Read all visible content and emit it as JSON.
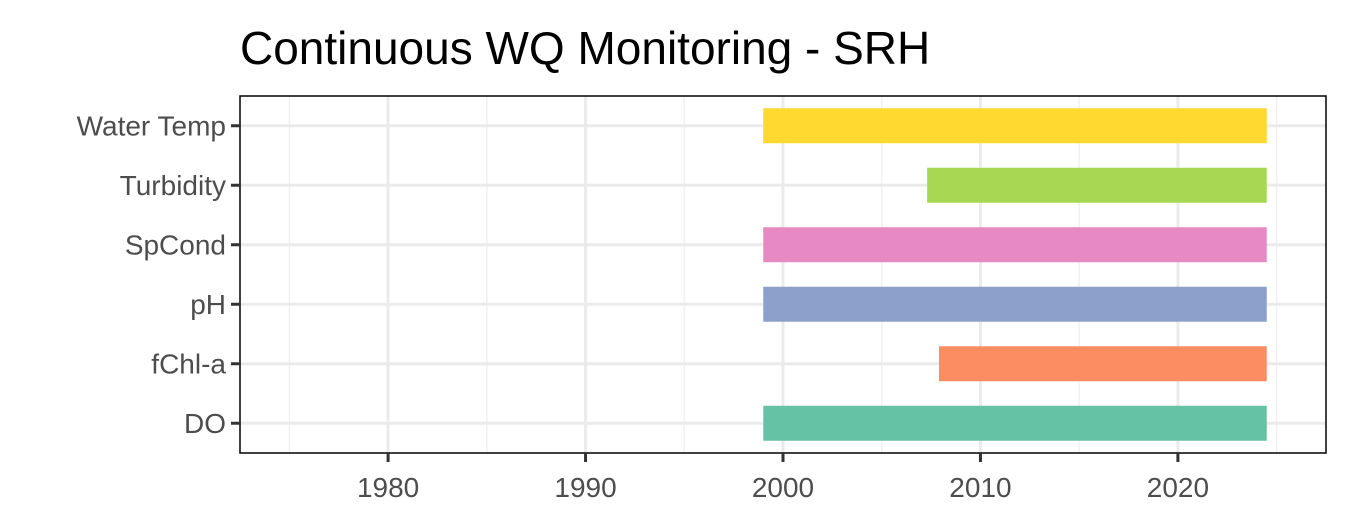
{
  "chart_data": {
    "type": "bar",
    "orientation": "horizontal",
    "title": "Continuous WQ Monitoring - SRH",
    "xlabel": "",
    "ylabel": "",
    "xlim": [
      1972.5,
      2027.5
    ],
    "x_ticks": [
      1980,
      1990,
      2000,
      2010,
      2020
    ],
    "x_tick_labels": [
      "1980",
      "1990",
      "2000",
      "2010",
      "2020"
    ],
    "grid": true,
    "legend": "none",
    "categories": [
      "Water Temp",
      "Turbidity",
      "SpCond",
      "pH",
      "fChl-a",
      "DO"
    ],
    "series": [
      {
        "category": "Water Temp",
        "start": 1999.0,
        "end": 2024.5,
        "color": "#FFD92F"
      },
      {
        "category": "Turbidity",
        "start": 2007.3,
        "end": 2024.5,
        "color": "#A6D854"
      },
      {
        "category": "SpCond",
        "start": 1999.0,
        "end": 2024.5,
        "color": "#E78AC3"
      },
      {
        "category": "pH",
        "start": 1999.0,
        "end": 2024.5,
        "color": "#8DA0CB"
      },
      {
        "category": "fChl-a",
        "start": 2007.9,
        "end": 2024.5,
        "color": "#FC8D62"
      },
      {
        "category": "DO",
        "start": 1999.0,
        "end": 2024.5,
        "color": "#66C2A5"
      }
    ]
  }
}
